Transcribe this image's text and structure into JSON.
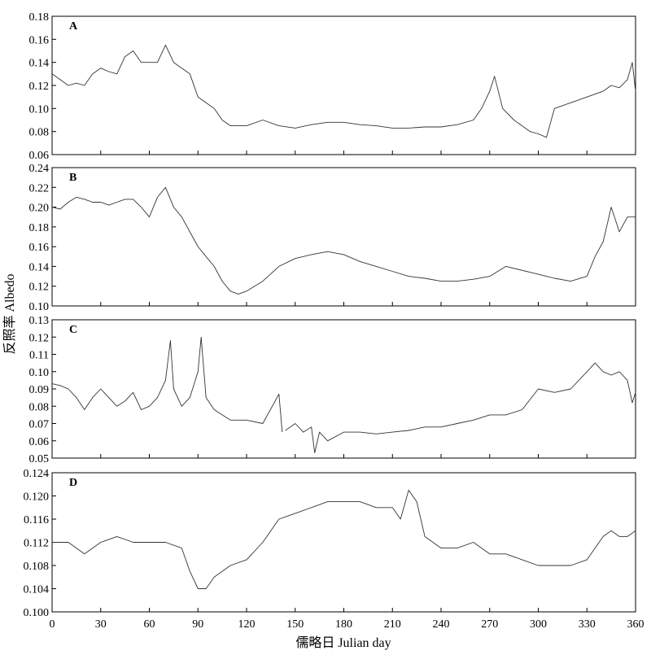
{
  "figure": {
    "ylabel": "反照率 Albedo",
    "xlabel": "儒略日 Julian day"
  },
  "chart_data": [
    {
      "type": "line",
      "panel": "A",
      "xlim": [
        0,
        360
      ],
      "ylim": [
        0.06,
        0.18
      ],
      "xticks": [
        0,
        30,
        60,
        90,
        120,
        150,
        180,
        210,
        240,
        270,
        300,
        330,
        360
      ],
      "yticks": [
        "0.06",
        "0.08",
        "0.10",
        "0.12",
        "0.14",
        "0.16",
        "0.18"
      ],
      "xticklabels_visible": false,
      "series": [
        {
          "x": [
            0,
            5,
            10,
            15,
            20,
            25,
            30,
            35,
            40,
            45,
            50,
            55,
            60,
            65,
            70,
            75,
            80,
            85,
            90,
            95,
            100,
            105,
            110,
            120,
            130,
            140,
            150,
            160,
            170,
            180,
            190,
            200,
            210,
            220,
            230,
            240,
            250,
            260,
            265,
            270,
            273,
            278,
            285,
            290,
            295,
            300,
            305,
            310,
            320,
            330,
            340,
            345,
            350,
            355,
            358,
            360
          ],
          "y": [
            0.13,
            0.125,
            0.12,
            0.122,
            0.12,
            0.13,
            0.135,
            0.132,
            0.13,
            0.145,
            0.15,
            0.14,
            0.14,
            0.14,
            0.155,
            0.14,
            0.135,
            0.13,
            0.11,
            0.105,
            0.1,
            0.09,
            0.085,
            0.085,
            0.09,
            0.085,
            0.083,
            0.086,
            0.088,
            0.088,
            0.086,
            0.085,
            0.083,
            0.083,
            0.084,
            0.084,
            0.086,
            0.09,
            0.1,
            0.115,
            0.128,
            0.1,
            0.09,
            0.085,
            0.08,
            0.078,
            0.075,
            0.1,
            0.105,
            0.11,
            0.115,
            0.12,
            0.118,
            0.125,
            0.14,
            0.115
          ]
        }
      ]
    },
    {
      "type": "line",
      "panel": "B",
      "xlim": [
        0,
        360
      ],
      "ylim": [
        0.1,
        0.24
      ],
      "xticks": [
        0,
        30,
        60,
        90,
        120,
        150,
        180,
        210,
        240,
        270,
        300,
        330,
        360
      ],
      "yticks": [
        "0.10",
        "0.12",
        "0.14",
        "0.16",
        "0.18",
        "0.20",
        "0.22",
        "0.24"
      ],
      "xticklabels_visible": false,
      "series": [
        {
          "x": [
            0,
            5,
            10,
            15,
            20,
            25,
            30,
            35,
            40,
            45,
            50,
            55,
            60,
            65,
            70,
            75,
            80,
            85,
            90,
            95,
            100,
            105,
            110,
            115,
            120,
            130,
            140,
            150,
            160,
            170,
            180,
            190,
            200,
            210,
            220,
            230,
            240,
            250,
            260,
            270,
            280,
            300,
            305,
            310,
            320,
            330,
            335,
            340,
            345,
            350,
            355,
            360
          ],
          "y": [
            0.2,
            0.198,
            0.205,
            0.21,
            0.208,
            0.205,
            0.205,
            0.202,
            0.205,
            0.208,
            0.208,
            0.2,
            0.19,
            0.21,
            0.22,
            0.2,
            0.19,
            0.175,
            0.16,
            0.15,
            0.14,
            0.125,
            0.115,
            0.112,
            0.115,
            0.125,
            0.14,
            0.148,
            0.152,
            0.155,
            0.152,
            0.145,
            0.14,
            0.135,
            0.13,
            0.128,
            0.125,
            0.125,
            0.127,
            0.13,
            0.14,
            0.132,
            0.13,
            0.128,
            0.125,
            0.13,
            0.15,
            0.165,
            0.2,
            0.175,
            0.19,
            0.19
          ]
        }
      ]
    },
    {
      "type": "line",
      "panel": "C",
      "xlim": [
        0,
        360
      ],
      "ylim": [
        0.05,
        0.13
      ],
      "xticks": [
        0,
        30,
        60,
        90,
        120,
        150,
        180,
        210,
        240,
        270,
        300,
        330,
        360
      ],
      "yticks": [
        "0.05",
        "0.06",
        "0.07",
        "0.08",
        "0.09",
        "0.10",
        "0.11",
        "0.12",
        "0.13"
      ],
      "xticklabels_visible": false,
      "series": [
        {
          "x": [
            0,
            5,
            10,
            15,
            20,
            25,
            30,
            35,
            40,
            45,
            50,
            55,
            60,
            65,
            70,
            73,
            75,
            80,
            85,
            90,
            92,
            95,
            100,
            105,
            110,
            120,
            130,
            140,
            142
          ],
          "y": [
            0.093,
            0.092,
            0.09,
            0.085,
            0.078,
            0.085,
            0.09,
            0.085,
            0.08,
            0.083,
            0.088,
            0.078,
            0.08,
            0.085,
            0.095,
            0.118,
            0.09,
            0.08,
            0.085,
            0.1,
            0.12,
            0.085,
            0.078,
            0.075,
            0.072,
            0.072,
            0.07,
            0.087,
            0.065
          ]
        },
        {
          "x": [
            144,
            150,
            155,
            160,
            162,
            165,
            170,
            180,
            190,
            200,
            210,
            220,
            230,
            240,
            250,
            260,
            270,
            280,
            290,
            300,
            310,
            320,
            330,
            335,
            340,
            345,
            350,
            355,
            358,
            360
          ],
          "y": [
            0.066,
            0.07,
            0.065,
            0.068,
            0.053,
            0.065,
            0.06,
            0.065,
            0.065,
            0.064,
            0.065,
            0.066,
            0.068,
            0.068,
            0.07,
            0.072,
            0.075,
            0.075,
            0.078,
            0.09,
            0.088,
            0.09,
            0.1,
            0.105,
            0.1,
            0.098,
            0.1,
            0.095,
            0.082,
            0.088
          ]
        }
      ]
    },
    {
      "type": "line",
      "panel": "D",
      "xlim": [
        0,
        360
      ],
      "ylim": [
        0.1,
        0.124
      ],
      "xticks": [
        0,
        30,
        60,
        90,
        120,
        150,
        180,
        210,
        240,
        270,
        300,
        330,
        360
      ],
      "xticklabels": [
        "0",
        "30",
        "60",
        "90",
        "120",
        "150",
        "180",
        "210",
        "240",
        "270",
        "300",
        "330",
        "360"
      ],
      "yticks": [
        "0.100",
        "0.104",
        "0.108",
        "0.112",
        "0.116",
        "0.120",
        "0.124"
      ],
      "xticklabels_visible": true,
      "series": [
        {
          "x": [
            0,
            10,
            20,
            30,
            40,
            50,
            60,
            70,
            80,
            85,
            90,
            95,
            100,
            110,
            120,
            130,
            140,
            150,
            160,
            170,
            180,
            190,
            200,
            210,
            215,
            220,
            225,
            230,
            240,
            250,
            260,
            270,
            280,
            290,
            300,
            310,
            320,
            330,
            340,
            345,
            350,
            355,
            360
          ],
          "y": [
            0.112,
            0.112,
            0.11,
            0.112,
            0.113,
            0.112,
            0.112,
            0.112,
            0.111,
            0.107,
            0.104,
            0.104,
            0.106,
            0.108,
            0.109,
            0.112,
            0.116,
            0.117,
            0.118,
            0.119,
            0.119,
            0.119,
            0.118,
            0.118,
            0.116,
            0.121,
            0.119,
            0.113,
            0.111,
            0.111,
            0.112,
            0.11,
            0.11,
            0.109,
            0.108,
            0.108,
            0.108,
            0.109,
            0.113,
            0.114,
            0.113,
            0.113,
            0.114
          ]
        }
      ]
    }
  ]
}
